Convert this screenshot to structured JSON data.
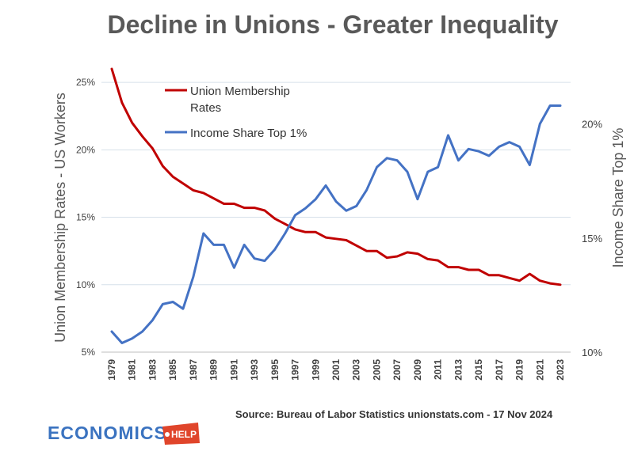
{
  "chart_data": {
    "type": "line",
    "title": "Decline in Unions - Greater Inequality",
    "xlabel": "",
    "ylabel_left": "Union Membership Rates - US Workers",
    "ylabel_right": "Income Share Top 1%",
    "x": [
      1979,
      1980,
      1981,
      1982,
      1983,
      1984,
      1985,
      1986,
      1987,
      1988,
      1989,
      1990,
      1991,
      1992,
      1993,
      1994,
      1995,
      1996,
      1997,
      1998,
      1999,
      2000,
      2001,
      2002,
      2003,
      2004,
      2005,
      2006,
      2007,
      2008,
      2009,
      2010,
      2011,
      2012,
      2013,
      2014,
      2015,
      2016,
      2017,
      2018,
      2019,
      2020,
      2021,
      2022,
      2023
    ],
    "x_tick_labels": [
      "1979",
      "1981",
      "1983",
      "1985",
      "1987",
      "1989",
      "1991",
      "1993",
      "1995",
      "1997",
      "1999",
      "2001",
      "2003",
      "2005",
      "2007",
      "2009",
      "2011",
      "2013",
      "2015",
      "2017",
      "2019",
      "2021",
      "2023"
    ],
    "y_left_ticks": [
      "5%",
      "10%",
      "15%",
      "20%",
      "25%"
    ],
    "y_left_range": [
      5,
      27
    ],
    "y_right_ticks": [
      "10%",
      "15%",
      "20%"
    ],
    "y_right_range": [
      10,
      23
    ],
    "grid": true,
    "legend_position": "top-left",
    "series": [
      {
        "name": "Union Membership Rates",
        "name_lines": [
          "Union Membership",
          "Rates"
        ],
        "axis": "left",
        "color": "#c00000",
        "values": [
          26.0,
          23.5,
          22.0,
          21.0,
          20.1,
          18.8,
          18.0,
          17.5,
          17.0,
          16.8,
          16.4,
          16.0,
          16.0,
          15.7,
          15.7,
          15.5,
          14.9,
          14.5,
          14.1,
          13.9,
          13.9,
          13.5,
          13.4,
          13.3,
          12.9,
          12.5,
          12.5,
          12.0,
          12.1,
          12.4,
          12.3,
          11.9,
          11.8,
          11.3,
          11.3,
          11.1,
          11.1,
          10.7,
          10.7,
          10.5,
          10.3,
          10.8,
          10.3,
          10.1,
          10.0
        ]
      },
      {
        "name": "Income Share Top 1%",
        "axis": "right",
        "color": "#4472c4",
        "values": [
          10.9,
          10.4,
          10.6,
          10.9,
          11.4,
          12.1,
          12.2,
          11.9,
          13.3,
          15.2,
          14.7,
          14.7,
          13.7,
          14.7,
          14.1,
          14.0,
          14.5,
          15.2,
          16.0,
          16.3,
          16.7,
          17.3,
          16.6,
          16.2,
          16.4,
          17.1,
          18.1,
          18.5,
          18.4,
          17.9,
          16.7,
          17.9,
          18.1,
          19.5,
          18.4,
          18.9,
          18.8,
          18.6,
          19.0,
          19.2,
          19.0,
          18.2,
          20.0,
          20.8,
          20.8
        ]
      }
    ]
  },
  "source_text": "Source: Bureau of Labor Statistics unionstats.com - 17 Nov 2024",
  "logo": {
    "word": "ECONOMICS",
    "badge": "HELP"
  }
}
